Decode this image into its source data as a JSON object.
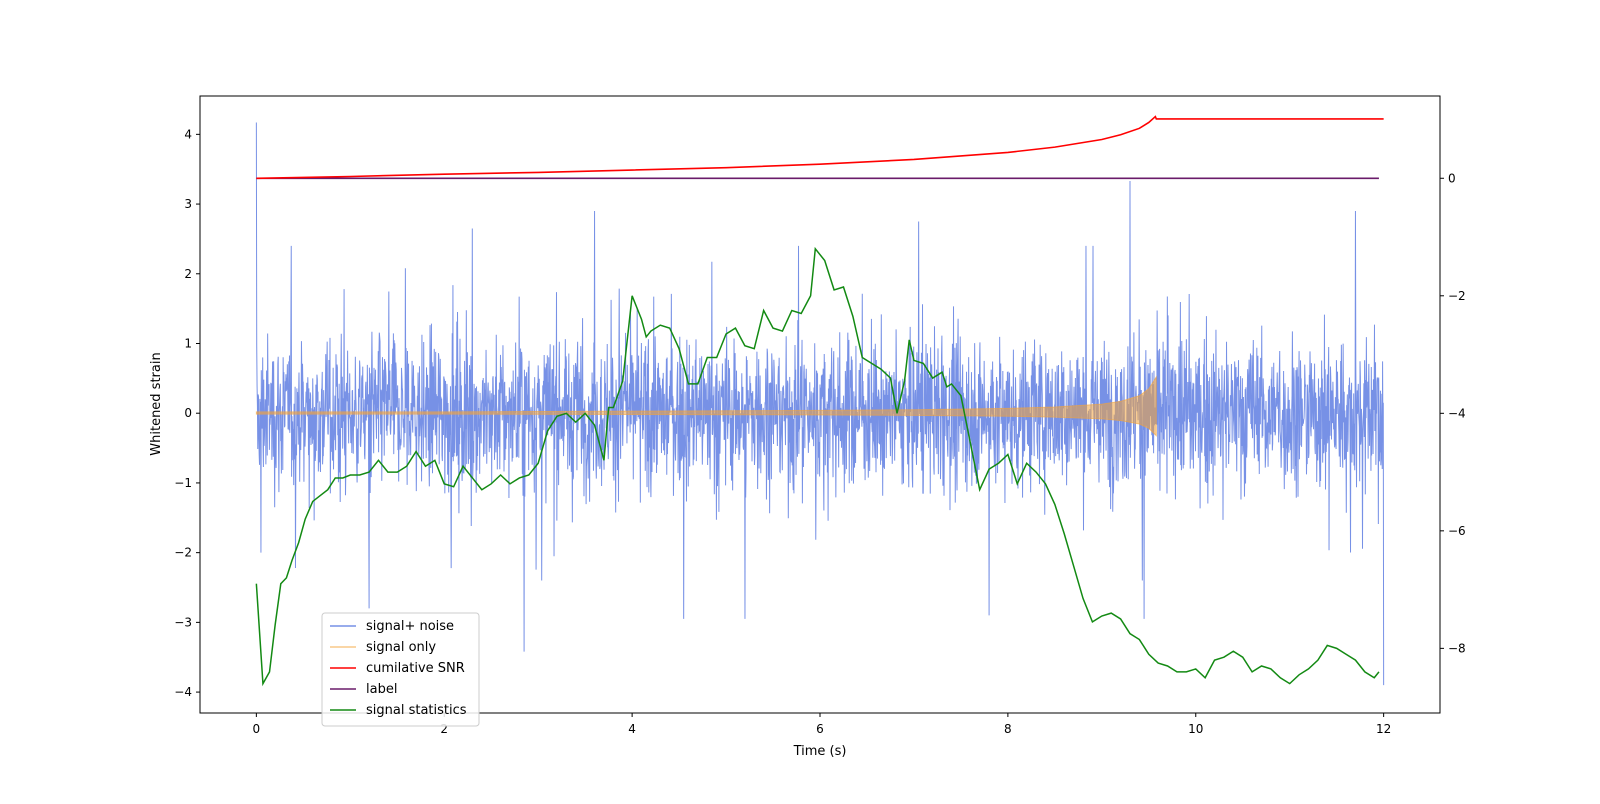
{
  "chart_data": {
    "type": "line",
    "xlabel": "Time (s)",
    "ylabel": "Whitened strain",
    "xlim": [
      -0.6,
      12.6
    ],
    "ylim": [
      -4.3,
      4.55
    ],
    "ylim_right": [
      -9.1,
      1.4
    ],
    "xticks": [
      0,
      2,
      4,
      6,
      8,
      10,
      12
    ],
    "yticks": [
      -4,
      -3,
      -2,
      -1,
      0,
      1,
      2,
      3,
      4
    ],
    "yticks_right": [
      -8,
      -6,
      -4,
      -2,
      0
    ],
    "grid": false,
    "legend_position": "lower-left",
    "series": [
      {
        "name": "signal+ noise",
        "axis": "left",
        "color": "#3d63db",
        "style": "dense noise band, roughly ±1.3 whitened strain with spikes to about ±2.9; peak 4.17 near t=0, spike 3.33 near t=9.3, min -3.9 near t=12",
        "x": [
          0,
          0.05,
          1.2,
          2.3,
          2.85,
          3.6,
          4.55,
          5.2,
          7.05,
          7.8,
          9.3,
          9.45,
          11.7,
          12.0
        ],
        "y": [
          4.17,
          -2.0,
          -2.8,
          2.65,
          -3.42,
          2.9,
          -2.95,
          -2.95,
          2.75,
          -2.9,
          3.33,
          -2.95,
          2.9,
          -3.9
        ]
      },
      {
        "name": "signal only",
        "axis": "left",
        "color": "#f4a43a",
        "style": "chirp envelope",
        "x": [
          0,
          2,
          4,
          6,
          7,
          8,
          8.5,
          9,
          9.2,
          9.4,
          9.5,
          9.58
        ],
        "y": [
          0.02,
          0.02,
          0.03,
          0.04,
          0.05,
          0.07,
          0.09,
          0.13,
          0.17,
          0.25,
          0.35,
          0.52
        ]
      },
      {
        "name": "cumilative SNR",
        "axis": "right",
        "color": "#ff0000",
        "x": [
          0,
          1,
          2,
          3,
          4,
          5,
          6,
          7,
          7.5,
          8,
          8.5,
          9,
          9.2,
          9.4,
          9.5,
          9.57,
          9.58,
          12.0
        ],
        "y": [
          0.0,
          0.03,
          0.07,
          0.1,
          0.14,
          0.18,
          0.24,
          0.32,
          0.38,
          0.44,
          0.53,
          0.66,
          0.74,
          0.85,
          0.95,
          1.05,
          1.01,
          1.01
        ]
      },
      {
        "name": "label",
        "axis": "right",
        "color": "#6a1b6a",
        "x": [
          0,
          11.95
        ],
        "y": [
          0.0,
          0.0
        ]
      },
      {
        "name": "signal statistics",
        "axis": "right",
        "color": "#138a13",
        "x": [
          0.0,
          0.07,
          0.14,
          0.2,
          0.26,
          0.32,
          0.38,
          0.45,
          0.52,
          0.6,
          0.68,
          0.76,
          0.84,
          0.92,
          1.0,
          1.1,
          1.2,
          1.3,
          1.4,
          1.5,
          1.6,
          1.7,
          1.8,
          1.9,
          2.0,
          2.1,
          2.2,
          2.3,
          2.4,
          2.5,
          2.6,
          2.7,
          2.8,
          2.9,
          3.0,
          3.1,
          3.2,
          3.3,
          3.4,
          3.5,
          3.6,
          3.7,
          3.75,
          3.8,
          3.9,
          4.0,
          4.1,
          4.15,
          4.2,
          4.3,
          4.4,
          4.5,
          4.6,
          4.7,
          4.8,
          4.9,
          5.0,
          5.1,
          5.2,
          5.3,
          5.4,
          5.5,
          5.6,
          5.7,
          5.8,
          5.9,
          5.95,
          6.05,
          6.15,
          6.25,
          6.35,
          6.45,
          6.55,
          6.65,
          6.75,
          6.82,
          6.9,
          6.95,
          7.0,
          7.1,
          7.2,
          7.3,
          7.35,
          7.4,
          7.5,
          7.6,
          7.7,
          7.8,
          7.9,
          8.0,
          8.1,
          8.2,
          8.3,
          8.4,
          8.5,
          8.6,
          8.7,
          8.8,
          8.9,
          9.0,
          9.1,
          9.2,
          9.3,
          9.4,
          9.5,
          9.6,
          9.7,
          9.8,
          9.9,
          10.0,
          10.1,
          10.2,
          10.3,
          10.4,
          10.5,
          10.6,
          10.7,
          10.8,
          10.9,
          11.0,
          11.1,
          11.2,
          11.3,
          11.4,
          11.5,
          11.6,
          11.7,
          11.8,
          11.9,
          11.95
        ],
        "y": [
          -6.9,
          -8.6,
          -8.4,
          -7.6,
          -6.9,
          -6.8,
          -6.5,
          -6.2,
          -5.8,
          -5.5,
          -5.4,
          -5.3,
          -5.1,
          -5.1,
          -5.05,
          -5.05,
          -5.0,
          -4.8,
          -5.0,
          -5.0,
          -4.9,
          -4.65,
          -4.9,
          -4.8,
          -5.2,
          -5.25,
          -4.9,
          -5.1,
          -5.3,
          -5.2,
          -5.05,
          -5.2,
          -5.1,
          -5.05,
          -4.85,
          -4.3,
          -4.05,
          -4.0,
          -4.15,
          -4.0,
          -4.2,
          -4.8,
          -3.9,
          -3.9,
          -3.45,
          -2.0,
          -2.4,
          -2.7,
          -2.6,
          -2.5,
          -2.55,
          -2.9,
          -3.5,
          -3.5,
          -3.05,
          -3.05,
          -2.65,
          -2.55,
          -2.85,
          -2.9,
          -2.25,
          -2.55,
          -2.6,
          -2.25,
          -2.3,
          -2.0,
          -1.2,
          -1.4,
          -1.9,
          -1.85,
          -2.35,
          -3.05,
          -3.15,
          -3.25,
          -3.4,
          -4.0,
          -3.45,
          -2.75,
          -3.1,
          -3.15,
          -3.4,
          -3.3,
          -3.55,
          -3.5,
          -3.7,
          -4.5,
          -5.3,
          -4.95,
          -4.85,
          -4.7,
          -5.2,
          -4.85,
          -5.0,
          -5.2,
          -5.55,
          -6.05,
          -6.6,
          -7.15,
          -7.55,
          -7.45,
          -7.4,
          -7.5,
          -7.75,
          -7.85,
          -8.1,
          -8.25,
          -8.3,
          -8.4,
          -8.4,
          -8.35,
          -8.5,
          -8.2,
          -8.15,
          -8.05,
          -8.15,
          -8.4,
          -8.3,
          -8.35,
          -8.5,
          -8.6,
          -8.45,
          -8.35,
          -8.2,
          -7.95,
          -8.0,
          -8.1,
          -8.2,
          -8.4,
          -8.5,
          -8.4
        ]
      }
    ]
  }
}
